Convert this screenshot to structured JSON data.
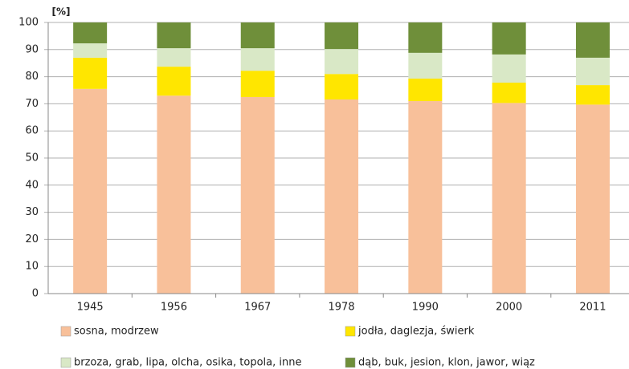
{
  "chart_data": {
    "type": "stacked_bar",
    "y_label": "[%]",
    "categories": [
      "1945",
      "1956",
      "1967",
      "1978",
      "1990",
      "2000",
      "2011"
    ],
    "series": [
      {
        "name": "sosna, modrzew",
        "color": "#f8c09a",
        "values": [
          75.5,
          73,
          72.5,
          71.6,
          71,
          70.3,
          69.7
        ]
      },
      {
        "name": "jodła, daglezja, świerk",
        "color": "#ffe600",
        "values": [
          11.5,
          10.7,
          9.7,
          9.4,
          8.3,
          7.5,
          7.2
        ]
      },
      {
        "name": "brzoza, grab, lipa, olcha, osika, topola, inne",
        "color": "#d9e8c6",
        "values": [
          5.3,
          6.8,
          8.3,
          9.2,
          9.5,
          10.4,
          10.1
        ]
      },
      {
        "name": "dąb, buk, jesion, klon, jawor, wiąz",
        "color": "#6f8f3a",
        "values": [
          7.7,
          9.5,
          9.5,
          9.8,
          11.2,
          11.8,
          13
        ]
      }
    ],
    "ylim": [
      0,
      100
    ],
    "yticks": [
      0,
      10,
      20,
      30,
      40,
      50,
      60,
      70,
      80,
      90,
      100
    ],
    "grid": true
  }
}
